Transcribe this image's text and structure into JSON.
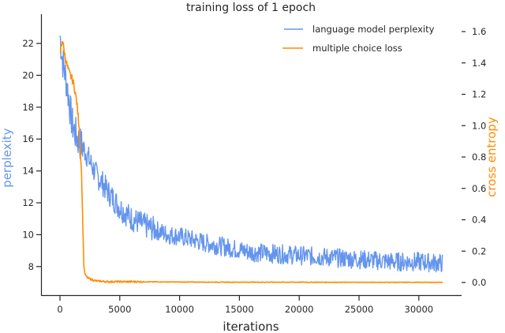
{
  "chart_data": {
    "type": "line",
    "title": "training loss of 1 epoch",
    "xlabel": "iterations",
    "ylabel": "perplexity",
    "ylabel_right": "cross entropy",
    "xlim": [
      -1500,
      33500
    ],
    "ylim": [
      6.8,
      23.8
    ],
    "ylim_right": [
      -0.06,
      1.66
    ],
    "x_ticks": [
      0,
      5000,
      10000,
      15000,
      20000,
      25000,
      30000
    ],
    "x_tick_labels": [
      "0",
      "5000",
      "10000",
      "15000",
      "20000",
      "25000",
      "30000"
    ],
    "y_ticks": [
      8,
      10,
      12,
      14,
      16,
      18,
      20,
      22
    ],
    "y_tick_labels": [
      "8",
      "10",
      "12",
      "14",
      "16",
      "18",
      "20",
      "22"
    ],
    "y_ticks_right": [
      0.0,
      0.2,
      0.4,
      0.6,
      0.8,
      1.0,
      1.2,
      1.4,
      1.6
    ],
    "y_tick_labels_right": [
      "0.0",
      "0.2",
      "0.4",
      "0.6",
      "0.8",
      "1.0",
      "1.2",
      "1.4",
      "1.6"
    ],
    "grid": false,
    "legend_position": "upper right",
    "series": [
      {
        "name": "language model perplexity",
        "axis": "left",
        "color": "#6495ed",
        "x": [
          0,
          200,
          400,
          600,
          800,
          1000,
          1300,
          1600,
          2000,
          2500,
          3000,
          3500,
          4000,
          5000,
          6000,
          7000,
          8000,
          9000,
          10000,
          12000,
          14000,
          16000,
          18000,
          20000,
          22000,
          24000,
          26000,
          28000,
          30000,
          32000
        ],
        "values": [
          22.5,
          21.0,
          20.2,
          19.3,
          18.2,
          17.0,
          16.3,
          15.8,
          15.4,
          14.6,
          13.8,
          13.3,
          12.7,
          11.7,
          11.0,
          10.6,
          10.3,
          10.0,
          9.9,
          9.5,
          9.2,
          8.9,
          8.8,
          8.7,
          8.6,
          8.5,
          8.4,
          8.3,
          8.3,
          8.2
        ]
      },
      {
        "name": "multiple choice loss",
        "axis": "right",
        "color": "#ff8c00",
        "x": [
          0,
          200,
          400,
          600,
          800,
          1000,
          1200,
          1400,
          1600,
          1800,
          1900,
          2000,
          2100,
          2300,
          2600,
          3000,
          4000,
          6000,
          10000,
          15000,
          20000,
          25000,
          30000,
          32000
        ],
        "values": [
          1.45,
          1.55,
          1.45,
          1.38,
          1.33,
          1.3,
          1.25,
          1.15,
          1.0,
          0.7,
          0.4,
          0.1,
          0.05,
          0.03,
          0.02,
          0.01,
          0.005,
          0.005,
          0.003,
          0.002,
          0.002,
          0.001,
          0.001,
          0.001
        ]
      }
    ]
  }
}
